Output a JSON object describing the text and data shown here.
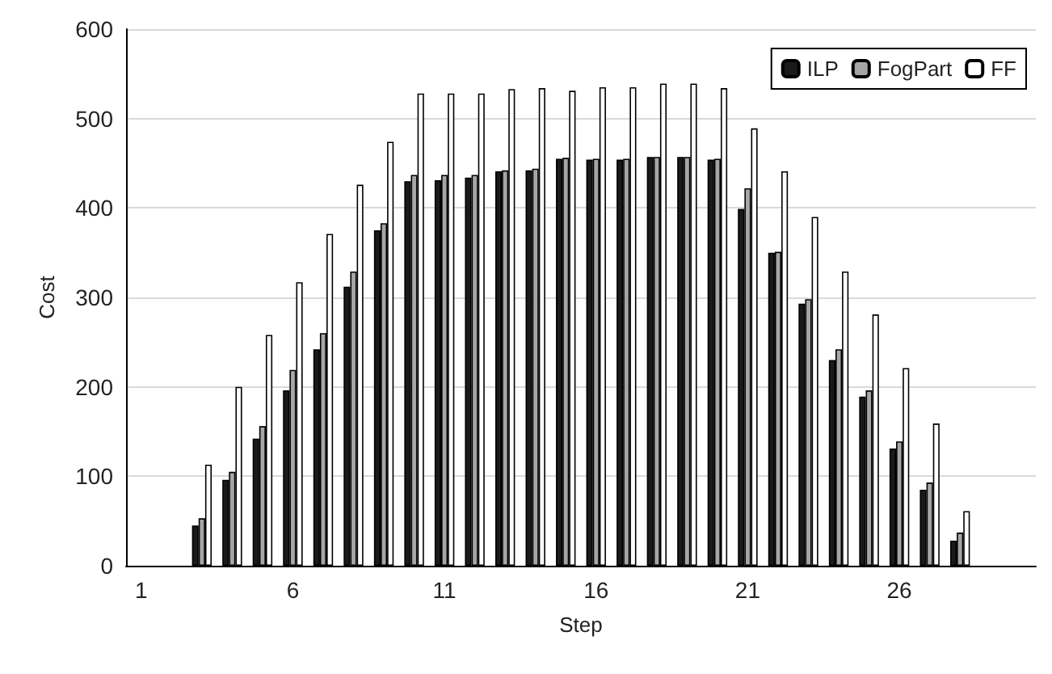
{
  "chart_data": {
    "type": "bar",
    "xlabel": "Step",
    "ylabel": "Cost",
    "categories": [
      "1",
      null,
      null,
      null,
      null,
      "6",
      null,
      null,
      null,
      null,
      "11",
      null,
      null,
      null,
      null,
      "16",
      null,
      null,
      null,
      null,
      "21",
      null,
      null,
      null,
      null,
      "26",
      null,
      null,
      null,
      null
    ],
    "series": [
      {
        "name": "ILP",
        "color": "#1a1a1a",
        "values": [
          null,
          null,
          45,
          96,
          142,
          196,
          242,
          312,
          375,
          430,
          431,
          434,
          441,
          442,
          455,
          454,
          454,
          457,
          457,
          454,
          399,
          350,
          293,
          230,
          189,
          131,
          85,
          28,
          null,
          null
        ]
      },
      {
        "name": "FogPart",
        "color": "#a6a6a6",
        "values": [
          null,
          null,
          53,
          105,
          156,
          219,
          260,
          329,
          383,
          437,
          437,
          437,
          442,
          444,
          456,
          455,
          455,
          457,
          457,
          455,
          422,
          351,
          298,
          242,
          196,
          139,
          93,
          37,
          null,
          null
        ]
      },
      {
        "name": "FF",
        "color": "#ffffff",
        "values": [
          null,
          null,
          113,
          200,
          258,
          317,
          371,
          426,
          474,
          528,
          528,
          528,
          533,
          534,
          531,
          535,
          535,
          539,
          539,
          534,
          489,
          441,
          390,
          329,
          281,
          221,
          159,
          61,
          null,
          null
        ]
      }
    ],
    "ylim": [
      0,
      600
    ],
    "yticks": [
      0,
      100,
      200,
      300,
      400,
      500,
      600
    ],
    "grid": "y",
    "legend": "top right"
  }
}
